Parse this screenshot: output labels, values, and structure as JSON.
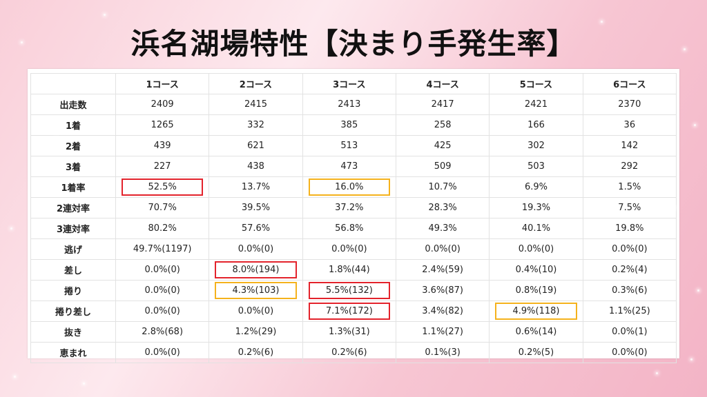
{
  "title": "浜名湖場特性【決まり手発生率】",
  "columns": [
    "",
    "1コース",
    "2コース",
    "3コース",
    "4コース",
    "5コース",
    "6コース"
  ],
  "rows": [
    {
      "label": "出走数",
      "cells": [
        "2409",
        "2415",
        "2413",
        "2417",
        "2421",
        "2370"
      ]
    },
    {
      "label": "1着",
      "cells": [
        "1265",
        "332",
        "385",
        "258",
        "166",
        "36"
      ]
    },
    {
      "label": "2着",
      "cells": [
        "439",
        "621",
        "513",
        "425",
        "302",
        "142"
      ]
    },
    {
      "label": "3着",
      "cells": [
        "227",
        "438",
        "473",
        "509",
        "503",
        "292"
      ]
    },
    {
      "label": "1着率",
      "cells": [
        "52.5%",
        "13.7%",
        "16.0%",
        "10.7%",
        "6.9%",
        "1.5%"
      ]
    },
    {
      "label": "2連対率",
      "cells": [
        "70.7%",
        "39.5%",
        "37.2%",
        "28.3%",
        "19.3%",
        "7.5%"
      ]
    },
    {
      "label": "3連対率",
      "cells": [
        "80.2%",
        "57.6%",
        "56.8%",
        "49.3%",
        "40.1%",
        "19.8%"
      ]
    },
    {
      "label": "逃げ",
      "cells": [
        "49.7%(1197)",
        "0.0%(0)",
        "0.0%(0)",
        "0.0%(0)",
        "0.0%(0)",
        "0.0%(0)"
      ]
    },
    {
      "label": "差し",
      "cells": [
        "0.0%(0)",
        "8.0%(194)",
        "1.8%(44)",
        "2.4%(59)",
        "0.4%(10)",
        "0.2%(4)"
      ]
    },
    {
      "label": "捲り",
      "cells": [
        "0.0%(0)",
        "4.3%(103)",
        "5.5%(132)",
        "3.6%(87)",
        "0.8%(19)",
        "0.3%(6)"
      ]
    },
    {
      "label": "捲り差し",
      "cells": [
        "0.0%(0)",
        "0.0%(0)",
        "7.1%(172)",
        "3.4%(82)",
        "4.9%(118)",
        "1.1%(25)"
      ]
    },
    {
      "label": "抜き",
      "cells": [
        "2.8%(68)",
        "1.2%(29)",
        "1.3%(31)",
        "1.1%(27)",
        "0.6%(14)",
        "0.0%(1)"
      ]
    },
    {
      "label": "恵まれ",
      "cells": [
        "0.0%(0)",
        "0.2%(6)",
        "0.2%(6)",
        "0.1%(3)",
        "0.2%(5)",
        "0.0%(0)"
      ]
    }
  ],
  "highlights": {
    "red": "#e3222b",
    "orange": "#f5b21c"
  }
}
